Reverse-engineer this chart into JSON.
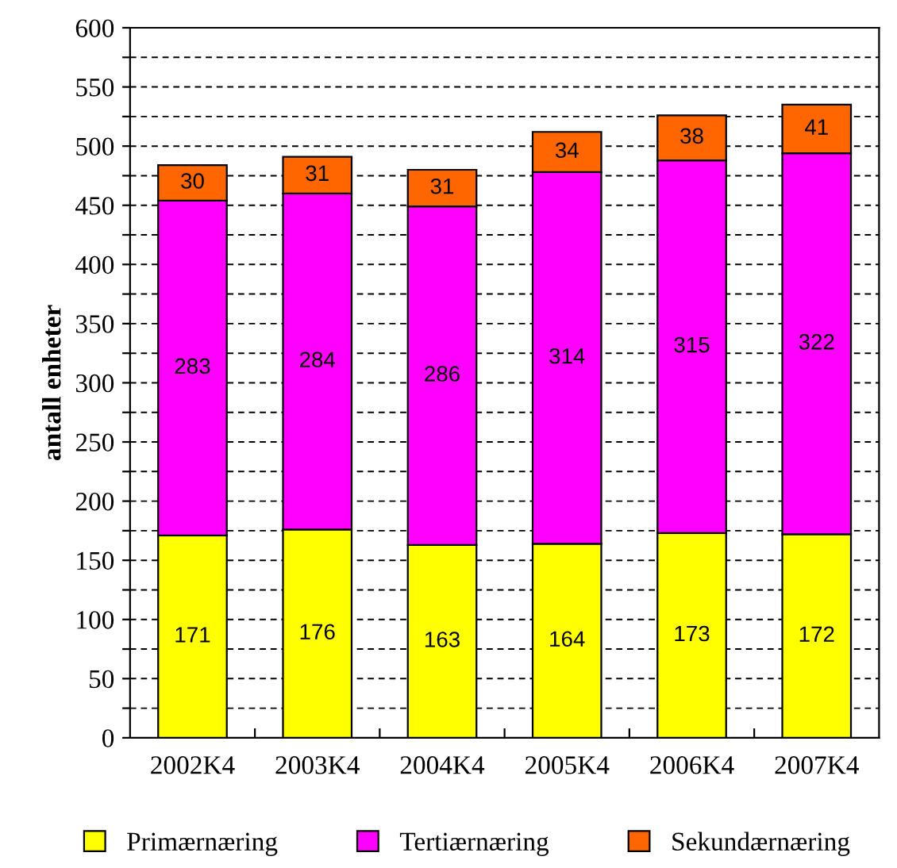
{
  "chart_data": {
    "type": "bar",
    "stacked": true,
    "ylabel": "antall enheter",
    "categories": [
      "2002K4",
      "2003K4",
      "2004K4",
      "2005K4",
      "2006K4",
      "2007K4"
    ],
    "series": [
      {
        "name": "Primærnæring",
        "color": "#ffff00",
        "values": [
          171,
          176,
          163,
          164,
          173,
          172
        ]
      },
      {
        "name": "Tertiærnæring",
        "color": "#ff00ff",
        "values": [
          283,
          284,
          286,
          314,
          315,
          322
        ]
      },
      {
        "name": "Sekundærnæring",
        "color": "#ff6600",
        "values": [
          30,
          31,
          31,
          34,
          38,
          41
        ]
      }
    ],
    "ylim": [
      0,
      600
    ],
    "yticks": [
      0,
      {
        "value": 25,
        "label": null
      },
      50,
      {
        "value": 75,
        "label": null
      },
      100,
      {
        "value": 125,
        "label": null
      },
      150,
      {
        "value": 175,
        "label": null
      },
      200,
      {
        "value": 225,
        "label": null
      },
      250,
      {
        "value": 275,
        "label": null
      },
      300,
      {
        "value": 325,
        "label": null
      },
      350,
      {
        "value": 375,
        "label": null
      },
      400,
      {
        "value": 425,
        "label": null
      },
      450,
      {
        "value": 475,
        "label": null
      },
      500,
      {
        "value": 525,
        "label": null
      },
      550,
      {
        "value": 575,
        "label": null
      },
      600
    ],
    "grid": "y",
    "legend": "bottom",
    "data_labels": true
  }
}
